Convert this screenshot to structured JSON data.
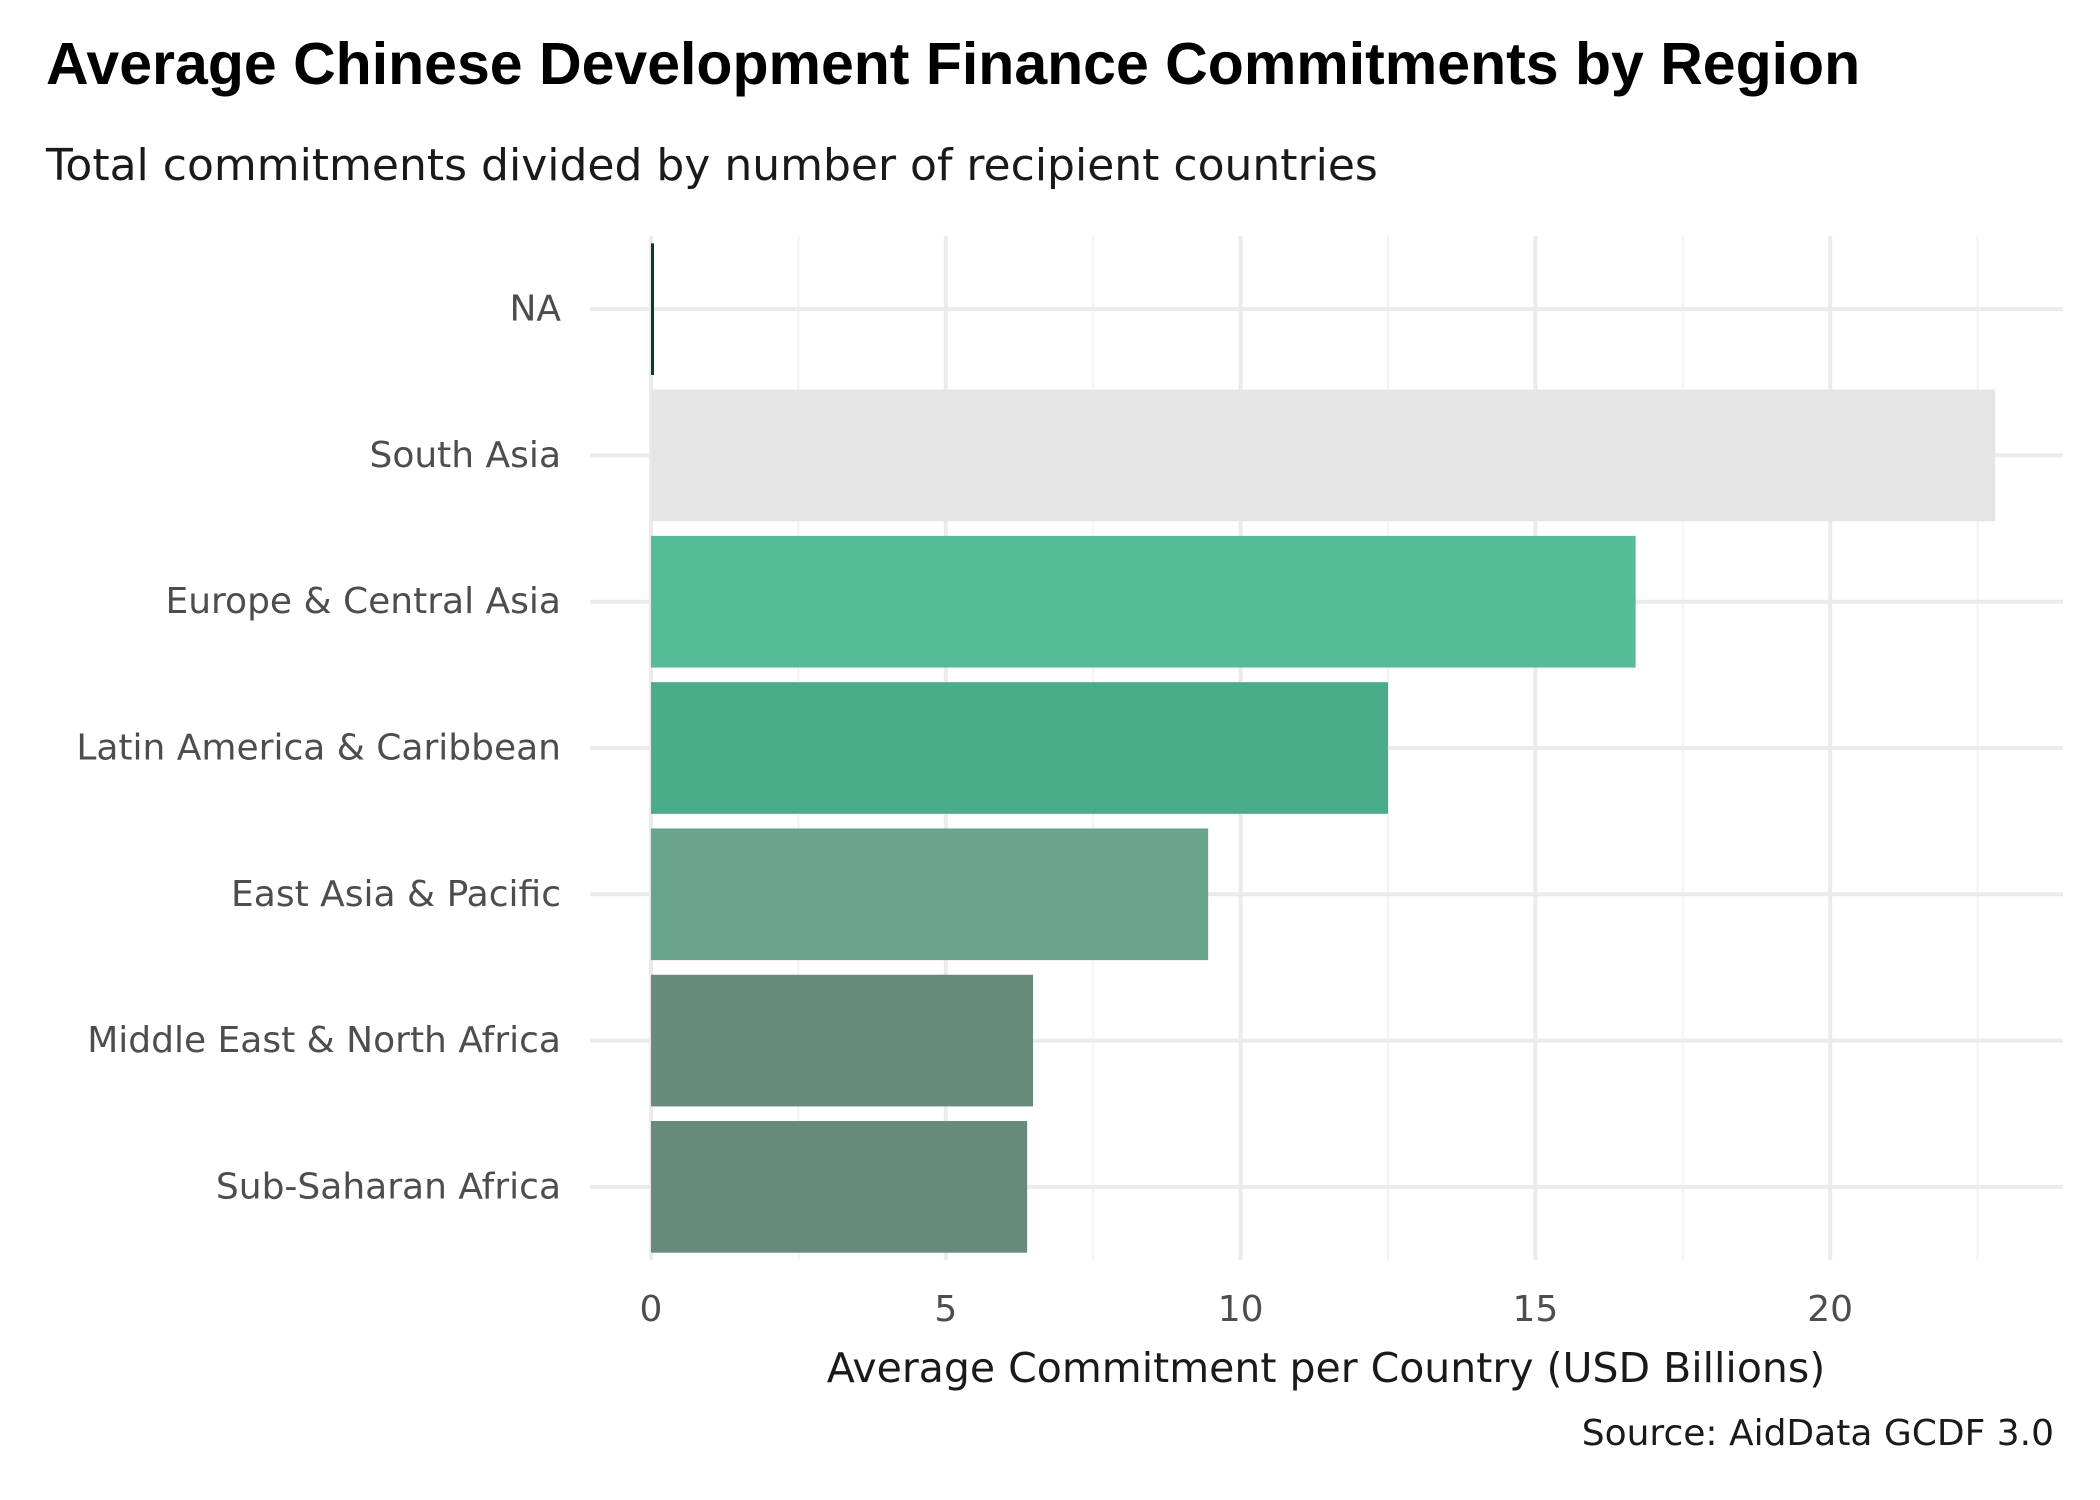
{
  "chart_data": {
    "type": "bar",
    "orientation": "horizontal",
    "title": "Average Chinese Development Finance Commitments by Region",
    "subtitle": "Total commitments divided by number of recipient countries",
    "xlabel": "Average Commitment per Country (USD Billions)",
    "ylabel": "",
    "caption": "Source: AidData GCDF 3.0",
    "categories": [
      "NA",
      "South Asia",
      "Europe & Central Asia",
      "Latin America & Caribbean",
      "East Asia & Pacific",
      "Middle East & North Africa",
      "Sub-Saharan Africa"
    ],
    "values": [
      0.05,
      22.8,
      16.7,
      12.5,
      9.45,
      6.48,
      6.38
    ],
    "colors": [
      "#0b3d2c",
      "#e5e5e5",
      "#54bd98",
      "#4aad8a",
      "#69a58d",
      "#688b7c",
      "#678b7b"
    ],
    "xlim": [
      0,
      23.9
    ],
    "xticks": [
      "0",
      "5",
      "10",
      "15",
      "20"
    ],
    "grid": true,
    "legend": "none"
  }
}
